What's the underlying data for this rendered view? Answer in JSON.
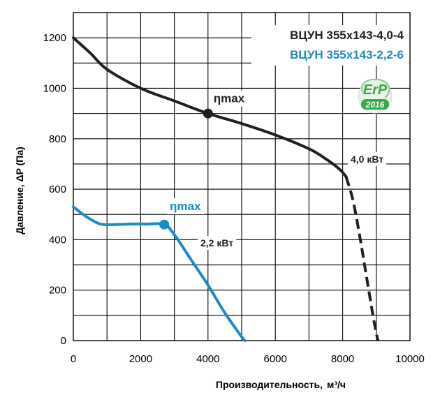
{
  "chart_data": {
    "type": "line",
    "title": "",
    "xlabel": "Производительность,",
    "xlabel_unit": "м³/ч",
    "ylabel": "Давление, ΔP (Па)",
    "xlim": [
      0,
      10000
    ],
    "ylim": [
      0,
      1300
    ],
    "x_ticks": [
      0,
      2000,
      4000,
      6000,
      8000,
      10000
    ],
    "y_ticks": [
      0,
      200,
      400,
      600,
      800,
      1000,
      1200
    ],
    "x_tick_labels": [
      "0",
      "2000",
      "4000",
      "6000",
      "8000",
      "10000"
    ],
    "y_tick_labels": [
      "0",
      "200",
      "400",
      "600",
      "800",
      "1000",
      "1200"
    ],
    "x_grid_step": 1000,
    "y_grid_step": 100,
    "grid": true,
    "legend_position": "top-right",
    "series": [
      {
        "name": "ВЦУН 355х143-4,0-4",
        "color": "#231f20",
        "solid_points": [
          [
            0,
            1200
          ],
          [
            500,
            1140
          ],
          [
            1000,
            1075
          ],
          [
            2000,
            1000
          ],
          [
            3000,
            950
          ],
          [
            4000,
            900
          ],
          [
            5000,
            860
          ],
          [
            6000,
            815
          ],
          [
            7000,
            760
          ],
          [
            7500,
            720
          ],
          [
            7900,
            680
          ],
          [
            8100,
            650
          ]
        ],
        "dashed_points": [
          [
            8100,
            650
          ],
          [
            8300,
            560
          ],
          [
            8500,
            420
          ],
          [
            8700,
            260
          ],
          [
            8900,
            100
          ],
          [
            9000,
            30
          ],
          [
            9050,
            0
          ]
        ],
        "eta_max_point": [
          4000,
          900
        ],
        "eta_label": "ηmax",
        "power_label": "4,0 кВт"
      },
      {
        "name": "ВЦУН 355х143-2,2-6",
        "color": "#1b8bc6",
        "solid_points": [
          [
            0,
            530
          ],
          [
            400,
            490
          ],
          [
            800,
            462
          ],
          [
            1200,
            460
          ],
          [
            1700,
            462
          ],
          [
            2200,
            462
          ],
          [
            2700,
            460
          ],
          [
            3000,
            420
          ],
          [
            3500,
            320
          ],
          [
            4000,
            220
          ],
          [
            4500,
            110
          ],
          [
            5000,
            15
          ],
          [
            5100,
            0
          ]
        ],
        "dashed_points": [],
        "eta_max_point": [
          2700,
          460
        ],
        "eta_label": "ηmax",
        "power_label": "2,2 кВт"
      }
    ],
    "badge": {
      "line1": "ErP",
      "line2": "2016",
      "color": "#3aa846"
    }
  }
}
